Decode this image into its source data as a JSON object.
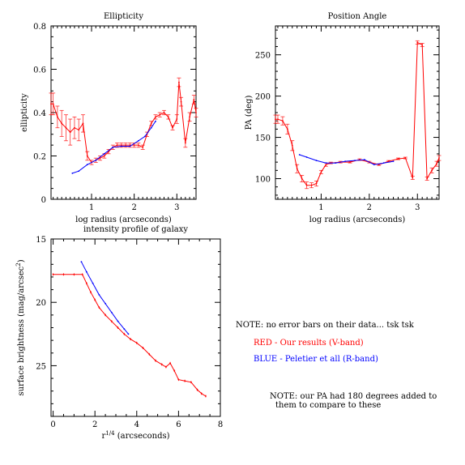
{
  "chart_data": [
    {
      "type": "line",
      "title": "Ellipticity",
      "xlabel": "log radius (arcseconds)",
      "ylabel": "ellipticity",
      "xlim": [
        0.05,
        3.45
      ],
      "ylim": [
        0,
        0.8
      ],
      "xticks": [
        1,
        2,
        3
      ],
      "yticks": [
        0,
        0.2,
        0.4,
        0.6,
        0.8
      ],
      "ytick_labels": [
        "0",
        "0.2",
        "0.4",
        "0.6",
        "0.8"
      ],
      "series": [
        {
          "color": "#ff0000",
          "x": [
            0.05,
            0.1,
            0.2,
            0.3,
            0.4,
            0.5,
            0.6,
            0.7,
            0.8,
            0.9,
            1.0,
            1.1,
            1.2,
            1.3,
            1.4,
            1.5,
            1.6,
            1.7,
            1.8,
            1.9,
            2.0,
            2.1,
            2.2,
            2.3,
            2.4,
            2.5,
            2.6,
            2.7,
            2.8,
            2.9,
            3.0,
            3.05,
            3.1,
            3.2,
            3.3,
            3.4,
            3.45
          ],
          "y": [
            0.44,
            0.44,
            0.38,
            0.35,
            0.33,
            0.31,
            0.33,
            0.32,
            0.35,
            0.2,
            0.17,
            0.18,
            0.19,
            0.2,
            0.22,
            0.24,
            0.25,
            0.25,
            0.25,
            0.25,
            0.25,
            0.25,
            0.24,
            0.3,
            0.35,
            0.38,
            0.39,
            0.4,
            0.38,
            0.33,
            0.37,
            0.54,
            0.45,
            0.26,
            0.38,
            0.46,
            0.4
          ],
          "yerr": [
            0.05,
            0.05,
            0.05,
            0.06,
            0.06,
            0.06,
            0.05,
            0.05,
            0.04,
            0.02,
            0.01,
            0.01,
            0.01,
            0.01,
            0.01,
            0.01,
            0.01,
            0.01,
            0.01,
            0.01,
            0.01,
            0.01,
            0.01,
            0.01,
            0.01,
            0.01,
            0.01,
            0.01,
            0.01,
            0.01,
            0.02,
            0.02,
            0.02,
            0.02,
            0.02,
            0.02,
            0.02
          ]
        },
        {
          "color": "#0000ff",
          "x": [
            0.55,
            0.7,
            0.9,
            1.1,
            1.3,
            1.5,
            1.7,
            1.9,
            2.1,
            2.25,
            2.4,
            2.5
          ],
          "y": [
            0.12,
            0.13,
            0.16,
            0.18,
            0.21,
            0.24,
            0.245,
            0.245,
            0.27,
            0.29,
            0.33,
            0.36
          ]
        }
      ]
    },
    {
      "type": "line",
      "title": "Position Angle",
      "xlabel": "log radius (arcseconds)",
      "ylabel": "PA (deg)",
      "xlim": [
        0.05,
        3.45
      ],
      "ylim": [
        75,
        285
      ],
      "xticks": [
        1,
        2,
        3
      ],
      "yticks": [
        100,
        150,
        200,
        250
      ],
      "ytick_labels": [
        "100",
        "150",
        "200",
        "250"
      ],
      "series": [
        {
          "color": "#ff0000",
          "x": [
            0.05,
            0.1,
            0.2,
            0.3,
            0.4,
            0.5,
            0.6,
            0.7,
            0.8,
            0.9,
            1.0,
            1.1,
            1.2,
            1.4,
            1.6,
            1.8,
            2.0,
            2.2,
            2.4,
            2.6,
            2.75,
            2.9,
            3.0,
            3.1,
            3.2,
            3.3,
            3.4,
            3.45
          ],
          "y": [
            172,
            172,
            170,
            160,
            140,
            112,
            100,
            92,
            92,
            94,
            108,
            117,
            119,
            120,
            120,
            123,
            120,
            117,
            121,
            124,
            125,
            101,
            265,
            262,
            100,
            110,
            118,
            125
          ],
          "yerr": [
            5,
            5,
            5,
            6,
            6,
            5,
            4,
            4,
            3,
            3,
            2,
            2,
            1,
            1,
            1,
            1,
            1,
            1,
            1,
            1,
            1,
            2,
            2,
            2,
            2,
            3,
            3,
            3
          ]
        },
        {
          "color": "#0000ff",
          "x": [
            0.55,
            0.7,
            0.9,
            1.1,
            1.3,
            1.5,
            1.7,
            1.9,
            2.1,
            2.3,
            2.5
          ],
          "y": [
            129,
            126,
            122,
            119,
            119,
            121,
            122,
            123,
            117,
            119,
            121
          ]
        }
      ]
    },
    {
      "type": "line",
      "title": "intensity profile of galaxy",
      "xlabel": "r^{1/4} (arcseconds)",
      "xlabel_base": "r",
      "xlabel_sup": "1/4",
      "xlabel_rest": " (arcseconds)",
      "ylabel": "surface brightness (mag/arcsec^2)",
      "ylabel_base": "surface brightness (mag/arcsec",
      "ylabel_sup": "2",
      "ylabel_rest": ")",
      "xlim": [
        -0.1,
        8
      ],
      "ylim": [
        15,
        29
      ],
      "y_inverted": true,
      "xticks": [
        0,
        2,
        4,
        6,
        8
      ],
      "yticks": [
        15,
        20,
        25
      ],
      "ytick_labels": [
        "15",
        "20",
        "25"
      ],
      "series": [
        {
          "color": "#ff0000",
          "x": [
            0.0,
            0.5,
            1.0,
            1.4,
            1.6,
            1.8,
            2.0,
            2.2,
            2.5,
            2.8,
            3.1,
            3.4,
            3.7,
            4.0,
            4.3,
            4.6,
            4.9,
            5.2,
            5.4,
            5.6,
            5.8,
            6.0,
            6.3,
            6.6,
            6.9,
            7.1,
            7.3
          ],
          "y": [
            17.8,
            17.8,
            17.8,
            17.8,
            18.5,
            19.2,
            19.8,
            20.4,
            21.0,
            21.5,
            22.0,
            22.5,
            22.9,
            23.2,
            23.6,
            24.1,
            24.6,
            24.9,
            25.1,
            24.8,
            25.4,
            26.1,
            26.2,
            26.3,
            26.9,
            27.2,
            27.4
          ]
        },
        {
          "color": "#0000ff",
          "x": [
            1.35,
            1.6,
            1.9,
            2.2,
            2.5,
            2.8,
            3.1,
            3.4,
            3.6
          ],
          "y": [
            16.8,
            17.6,
            18.5,
            19.4,
            20.1,
            20.8,
            21.5,
            22.1,
            22.5
          ]
        }
      ]
    }
  ],
  "notes": {
    "no_error_bars": "NOTE: no error bars on their data... tsk tsk",
    "red_legend": "RED - Our results (V-band)",
    "blue_legend": "BLUE - Peletier et all (R-band)",
    "pa_note_line1": "NOTE: our PA had 180 degrees added to",
    "pa_note_line2": "them to compare to these"
  }
}
